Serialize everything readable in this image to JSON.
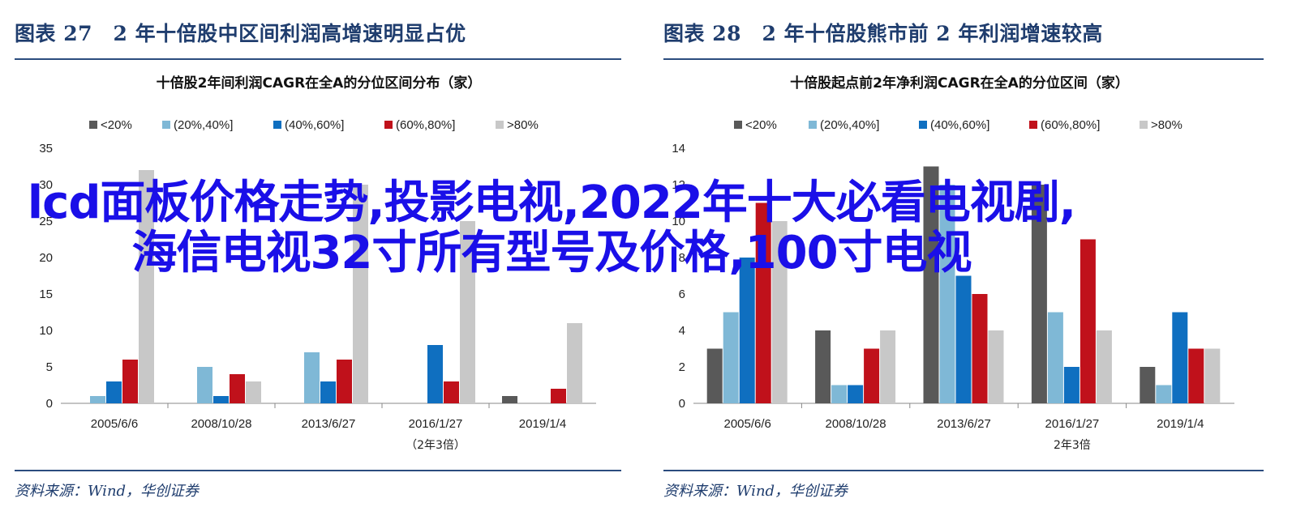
{
  "charts": [
    {
      "fig_title": "图表 27　2 年十倍股中区间利润高增速明显占优",
      "source": "资料来源：Wind，华创证券",
      "chart_data": {
        "type": "bar",
        "title": "十倍股2年间利润CAGR在全A的分位区间分布（家）",
        "categories": [
          "2005/6/6",
          "2008/10/28",
          "2013/6/27",
          "2016/1/27",
          "2019/1/4"
        ],
        "category_note": {
          "index": 3,
          "text": "（2年3倍）"
        },
        "series": [
          {
            "name": "<20%",
            "color": "#595959",
            "values": [
              0,
              0,
              0,
              0,
              1
            ]
          },
          {
            "name": "(20%,40%]",
            "color": "#7fb8d6",
            "values": [
              1,
              5,
              7,
              0,
              0
            ]
          },
          {
            "name": "(40%,60%]",
            "color": "#0f6fc0",
            "values": [
              3,
              1,
              3,
              8,
              0
            ]
          },
          {
            "name": "(60%,80%]",
            "color": "#c0111b",
            "values": [
              6,
              4,
              6,
              3,
              2
            ]
          },
          {
            "name": ">80%",
            "color": "#c8c8c8",
            "values": [
              32,
              3,
              30,
              25,
              11
            ]
          }
        ],
        "ylim": [
          0,
          35
        ],
        "yticks": [
          0,
          5,
          10,
          15,
          20,
          25,
          30,
          35
        ],
        "legend": "top"
      }
    },
    {
      "fig_title": "图表 28　2 年十倍股熊市前 2 年利润增速较高",
      "source": "资料来源：Wind，华创证券",
      "chart_data": {
        "type": "bar",
        "title": "十倍股起点前2年净利润CAGR在全A的分位区间（家）",
        "categories": [
          "2005/6/6",
          "2008/10/28",
          "2013/6/27",
          "2016/1/27",
          "2019/1/4"
        ],
        "category_note": {
          "index": 3,
          "text": "2年3倍"
        },
        "series": [
          {
            "name": "<20%",
            "color": "#595959",
            "values": [
              3,
              4,
              13,
              12,
              2
            ]
          },
          {
            "name": "(20%,40%]",
            "color": "#7fb8d6",
            "values": [
              5,
              1,
              12,
              5,
              1
            ]
          },
          {
            "name": "(40%,60%]",
            "color": "#0f6fc0",
            "values": [
              8,
              1,
              7,
              2,
              5
            ]
          },
          {
            "name": "(60%,80%]",
            "color": "#c0111b",
            "values": [
              11,
              3,
              6,
              9,
              3
            ]
          },
          {
            "name": ">80%",
            "color": "#c8c8c8",
            "values": [
              10,
              4,
              4,
              4,
              3
            ]
          }
        ],
        "ylim": [
          0,
          14
        ],
        "yticks": [
          0,
          2,
          4,
          6,
          8,
          10,
          12,
          14
        ],
        "legend": "top"
      }
    }
  ],
  "overlay_text": "lcd面板价格走势,投影电视,2022年十大必看电视剧,海信电视32寸所有型号及价格,100寸电视",
  "colors": {
    "title": "#1f3d6e",
    "rule": "#2b4c7e",
    "overlay": "#1a0fe8"
  }
}
